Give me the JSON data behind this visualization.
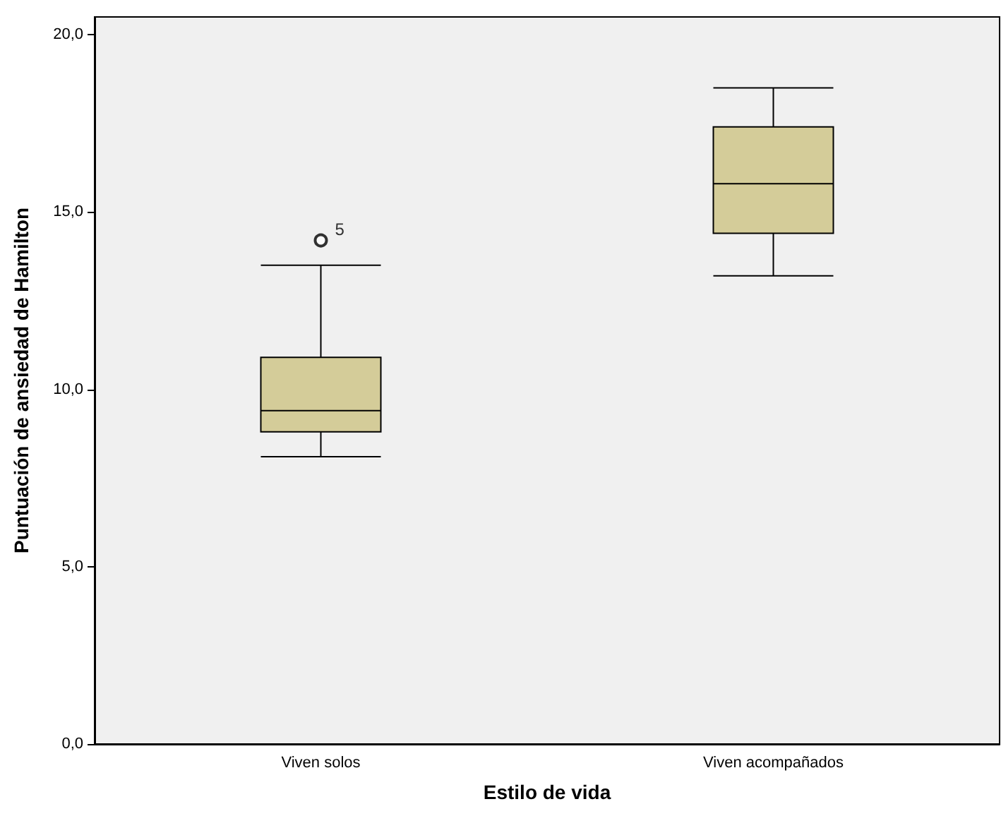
{
  "chart_data": {
    "type": "box",
    "xlabel": "Estilo de vida",
    "ylabel": "Puntuación de ansiedad de Hamilton",
    "categories": [
      "Viven solos",
      "Viven acompañados"
    ],
    "color": "#d4cc99",
    "boxes": [
      {
        "low": 8.1,
        "q1": 8.8,
        "median": 9.4,
        "q3": 10.9,
        "high": 13.5,
        "outliers": [
          14.2
        ]
      },
      {
        "low": 13.2,
        "q1": 14.4,
        "median": 15.8,
        "q3": 17.4,
        "high": 18.5
      }
    ],
    "ylim": [
      0,
      20.5
    ],
    "yticks": [
      {
        "value": 0,
        "label": "0,0"
      },
      {
        "value": 5,
        "label": "5,0"
      },
      {
        "value": 10,
        "label": "10,0"
      },
      {
        "value": 15,
        "label": "15,0"
      },
      {
        "value": 20,
        "label": "20,0"
      }
    ],
    "annotations": [
      "5"
    ],
    "grid": false
  }
}
